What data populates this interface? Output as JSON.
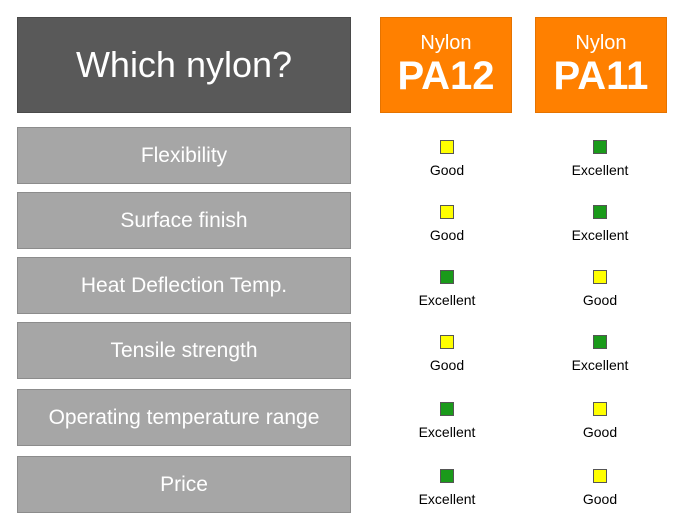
{
  "title": "Which nylon?",
  "colors": {
    "excellent": "#1a9a1a",
    "good": "#ffff00",
    "header_bg": "#ff8000",
    "title_bg": "#595959",
    "label_bg": "#a6a6a6"
  },
  "columns": [
    {
      "prefix": "Nylon",
      "name": "PA12"
    },
    {
      "prefix": "Nylon",
      "name": "PA11"
    }
  ],
  "rows": [
    {
      "label": "Flexibility",
      "pa12": "Good",
      "pa11": "Excellent"
    },
    {
      "label": "Surface finish",
      "pa12": "Good",
      "pa11": "Excellent"
    },
    {
      "label": "Heat Deflection Temp.",
      "pa12": "Excellent",
      "pa11": "Good"
    },
    {
      "label": "Tensile strength",
      "pa12": "Good",
      "pa11": "Excellent"
    },
    {
      "label": "Operating temperature range",
      "pa12": "Excellent",
      "pa11": "Good"
    },
    {
      "label": "Price",
      "pa12": "Excellent",
      "pa11": "Good"
    }
  ]
}
